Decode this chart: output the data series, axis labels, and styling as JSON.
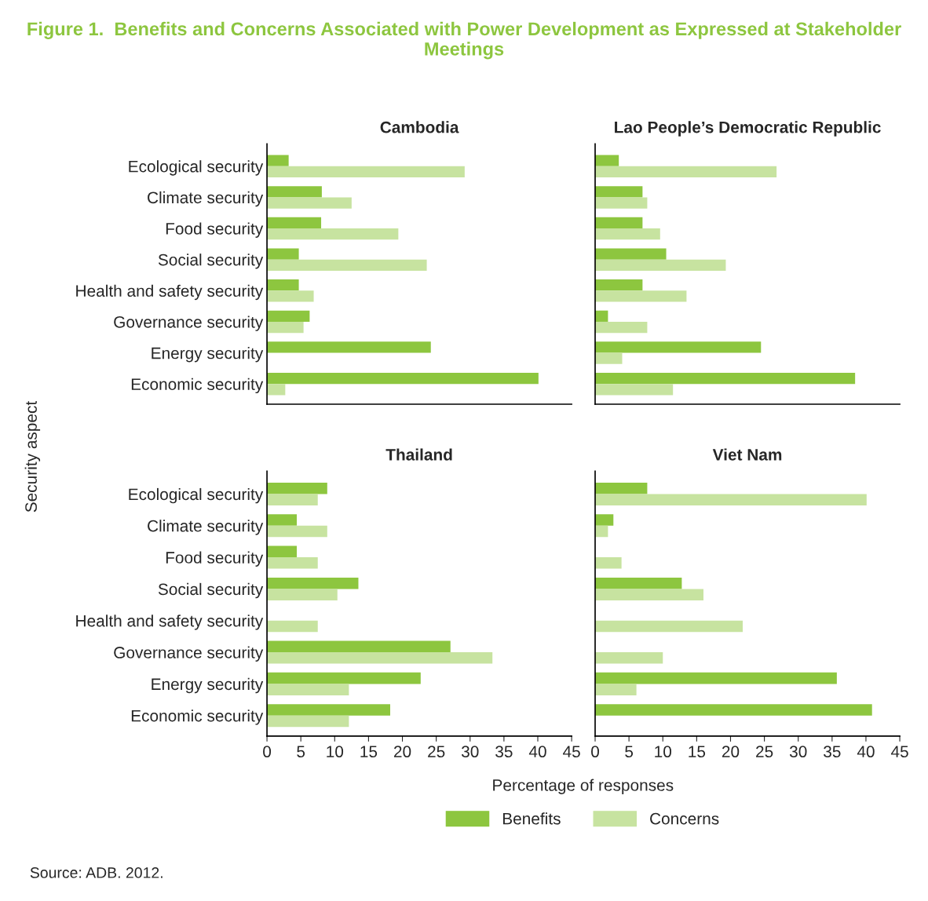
{
  "chart_data": [
    {
      "type": "other",
      "title": "Figure 1.  Benefits and Concerns Associated with Power Development as Expressed at Stakeholder Meetings",
      "xlabel": "Percentage of responses",
      "ylabel": "Security aspect",
      "annotations": [
        "Source: ADB. 2012."
      ]
    },
    {
      "type": "bar",
      "orientation": "horizontal",
      "title": "Cambodia",
      "categories": [
        "Ecological security",
        "Climate security",
        "Food security",
        "Social security",
        "Health and safety security",
        "Governance security",
        "Energy security",
        "Economic security"
      ],
      "xlim": [
        0,
        45
      ],
      "xticks": [
        0,
        5,
        10,
        15,
        20,
        25,
        30,
        35,
        40,
        45
      ],
      "tick_labels": "y",
      "legend": "bottom",
      "series": [
        {
          "name": "Benefits",
          "color": "#8dc63f",
          "values": [
            3.2,
            8.1,
            8.0,
            4.7,
            4.7,
            6.3,
            24.2,
            40.1
          ]
        },
        {
          "name": "Concerns",
          "color": "#c7e3a0",
          "values": [
            29.2,
            12.5,
            19.4,
            23.6,
            6.9,
            5.4,
            0,
            2.7
          ]
        }
      ]
    },
    {
      "type": "bar",
      "orientation": "horizontal",
      "title": "Lao People’s Democratic Republic",
      "categories": [
        null,
        null,
        null,
        null,
        null,
        null,
        null,
        null
      ],
      "xlim": [
        0,
        45
      ],
      "xticks": [
        0,
        5,
        10,
        15,
        20,
        25,
        30,
        35,
        40,
        45
      ],
      "tick_labels": false,
      "series": [
        {
          "color": "#8dc63f",
          "values": [
            3.5,
            7.0,
            7.0,
            10.5,
            7.0,
            1.9,
            24.5,
            38.4
          ]
        },
        {
          "color": "#c7e3a0",
          "values": [
            26.8,
            7.7,
            9.6,
            19.3,
            13.5,
            7.7,
            4.0,
            11.5
          ]
        }
      ]
    },
    {
      "type": "bar",
      "orientation": "horizontal",
      "title": "Thailand",
      "categories": [
        "Ecological security",
        "Climate security",
        "Food security",
        "Social security",
        "Health and safety security",
        "Governance security",
        "Energy security",
        "Economic security"
      ],
      "xlim": [
        0,
        45
      ],
      "xticks": [
        0,
        5,
        10,
        15,
        20,
        25,
        30,
        35,
        40,
        45
      ],
      "series": [
        {
          "color": "#8dc63f",
          "values": [
            8.9,
            4.4,
            4.4,
            13.5,
            0,
            27.1,
            22.7,
            18.2
          ]
        },
        {
          "color": "#c7e3a0",
          "values": [
            7.5,
            8.9,
            7.5,
            10.4,
            7.5,
            33.3,
            12.1,
            12.1
          ]
        }
      ]
    },
    {
      "type": "bar",
      "orientation": "horizontal",
      "title": "Viet Nam",
      "categories": [
        null,
        null,
        null,
        null,
        null,
        null,
        null,
        null
      ],
      "xlim": [
        0,
        45
      ],
      "xticks": [
        0,
        5,
        10,
        15,
        20,
        25,
        30,
        35,
        40,
        45
      ],
      "tick_labels": "x",
      "series": [
        {
          "color": "#8dc63f",
          "values": [
            7.7,
            2.7,
            0,
            12.8,
            0,
            0,
            35.7,
            40.9
          ]
        },
        {
          "color": "#c7e3a0",
          "values": [
            40.1,
            1.9,
            3.9,
            16.0,
            21.8,
            10.0,
            6.1,
            0
          ]
        }
      ]
    }
  ]
}
